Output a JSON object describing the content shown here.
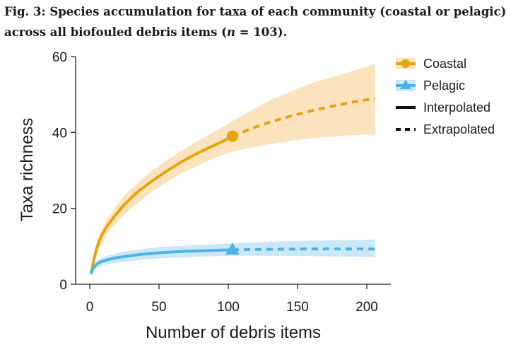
{
  "caption": {
    "fig_label": "Fig. 3:",
    "text_before_n": " Species accumulation for taxa of each community (coastal or pelagic) across all biofouled debris items (",
    "n_symbol": "n",
    "text_after_n": " = 103)."
  },
  "chart_data": {
    "type": "line",
    "title": "Species accumulation for taxa of each community (coastal or pelagic) across all biofouled debris items (n = 103)",
    "xlabel": "Number of debris items",
    "ylabel": "Taxa richness",
    "xlim": [
      0,
      210
    ],
    "ylim": [
      0,
      60
    ],
    "x_ticks": [
      0,
      50,
      100,
      150,
      200
    ],
    "y_ticks": [
      0,
      20,
      40,
      60
    ],
    "grid": false,
    "legend_position": "top-right",
    "legend": [
      "Coastal",
      "Pelagic",
      "Interpolated",
      "Extrapolated"
    ],
    "observed_n": 103,
    "series": [
      {
        "name": "Coastal",
        "color": "#E5A50F",
        "band_color": "#FBE3BE",
        "marker": "circle",
        "interpolated": {
          "x": [
            1,
            3,
            5,
            8,
            12,
            18,
            25,
            35,
            45,
            55,
            65,
            75,
            85,
            95,
            103
          ],
          "y": [
            3,
            6.5,
            9.5,
            12.5,
            15,
            18,
            21,
            24.5,
            27.2,
            29.7,
            32,
            34,
            35.8,
            37.5,
            39
          ]
        },
        "extrapolated": {
          "x": [
            103,
            115,
            130,
            145,
            160,
            175,
            190,
            206
          ],
          "y": [
            39,
            40.8,
            42.7,
            44.3,
            45.7,
            46.9,
            48,
            49
          ]
        },
        "ci_lower": {
          "x": [
            1,
            5,
            12,
            25,
            45,
            65,
            85,
            103,
            130,
            160,
            190,
            206
          ],
          "y": [
            3,
            8,
            13,
            18.5,
            24.5,
            29,
            32.5,
            35,
            37,
            38.5,
            39.3,
            39.5
          ]
        },
        "ci_upper": {
          "x": [
            1,
            5,
            12,
            25,
            45,
            65,
            85,
            103,
            130,
            160,
            190,
            206
          ],
          "y": [
            3,
            11,
            17,
            23.5,
            30,
            35,
            39.2,
            43,
            48.5,
            53,
            56.2,
            58
          ]
        }
      },
      {
        "name": "Pelagic",
        "color": "#4DB3E6",
        "band_color": "#CCE8F7",
        "marker": "triangle",
        "interpolated": {
          "x": [
            1,
            3,
            5,
            8,
            12,
            18,
            25,
            35,
            50,
            65,
            80,
            95,
            103
          ],
          "y": [
            3,
            4.5,
            5.3,
            5.9,
            6.4,
            6.9,
            7.3,
            7.8,
            8.3,
            8.6,
            8.8,
            9,
            9.1
          ]
        },
        "extrapolated": {
          "x": [
            103,
            130,
            160,
            190,
            206
          ],
          "y": [
            9.1,
            9.2,
            9.3,
            9.3,
            9.3
          ]
        },
        "ci_lower": {
          "x": [
            1,
            5,
            12,
            25,
            50,
            80,
            103,
            130,
            160,
            206
          ],
          "y": [
            3,
            4.4,
            5.3,
            6,
            6.8,
            7.3,
            7.5,
            7.5,
            7.4,
            7.2
          ]
        },
        "ci_upper": {
          "x": [
            1,
            5,
            12,
            25,
            50,
            80,
            103,
            130,
            160,
            206
          ],
          "y": [
            3,
            6.3,
            7.5,
            8.6,
            9.8,
            10.4,
            10.8,
            11.2,
            11.5,
            11.8
          ]
        }
      }
    ]
  }
}
